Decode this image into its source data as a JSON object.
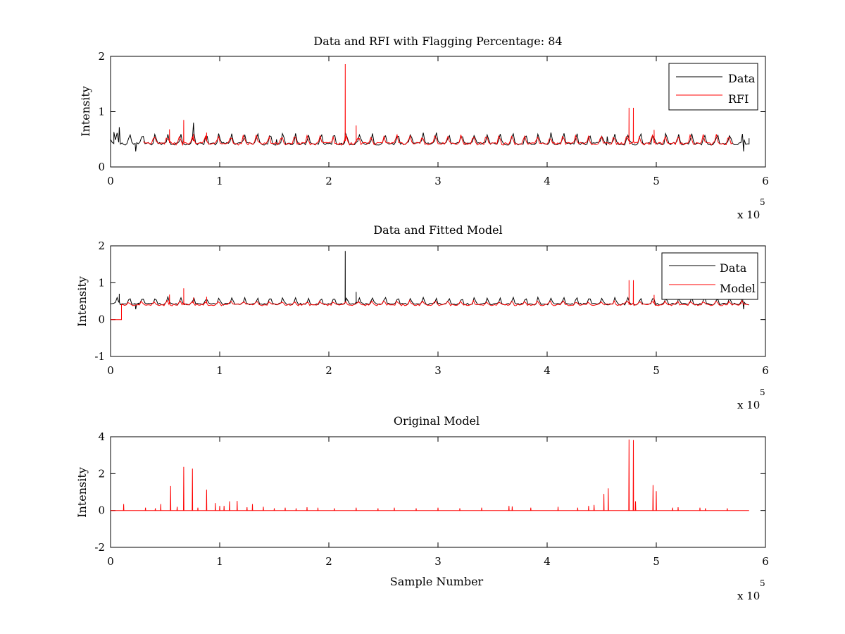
{
  "chart_data": [
    {
      "type": "line",
      "title": "Data and RFI with Flagging Percentage: 84",
      "xlabel": "",
      "ylabel": "Intensity",
      "xlim": [
        0,
        600000
      ],
      "ylim": [
        0,
        2
      ],
      "xticks": [
        "0",
        "1",
        "2",
        "3",
        "4",
        "5",
        "6"
      ],
      "yticks": [
        "0",
        "1",
        "2"
      ],
      "x_multiplier": "x 10",
      "x_multiplier_exp": "5",
      "legend": "top-right",
      "grid": false,
      "series": [
        {
          "name": "Data",
          "color": "#000000",
          "baseline": 0.42,
          "bump": 0.1,
          "note_points": [
            [
              0,
              0.5
            ],
            [
              3000,
              0.63
            ],
            [
              8000,
              0.72
            ],
            [
              23000,
              0.28
            ],
            [
              76000,
              0.8
            ],
            [
              152000,
              0.5
            ],
            [
              215000,
              0.62
            ],
            [
              455000,
              0.55
            ],
            [
              580000,
              0.28
            ],
            [
              585000,
              0.52
            ]
          ]
        },
        {
          "name": "RFI",
          "color": "#ff0000",
          "baseline": 0.42,
          "bump": 0.1,
          "segment": [
            30000,
            570000
          ],
          "spikes": [
            [
              54000,
              0.68
            ],
            [
              67000,
              0.85
            ],
            [
              76000,
              0.6
            ],
            [
              88000,
              0.62
            ],
            [
              215000,
              1.86
            ],
            [
              225000,
              0.75
            ],
            [
              475000,
              1.07
            ],
            [
              479000,
              1.07
            ],
            [
              498000,
              0.67
            ]
          ]
        }
      ]
    },
    {
      "type": "line",
      "title": "Data and Fitted Model",
      "xlabel": "",
      "ylabel": "Intensity",
      "xlim": [
        0,
        600000
      ],
      "ylim": [
        -1,
        2
      ],
      "xticks": [
        "0",
        "1",
        "2",
        "3",
        "4",
        "5",
        "6"
      ],
      "yticks": [
        "-1",
        "0",
        "1",
        "2"
      ],
      "x_multiplier": "x 10",
      "x_multiplier_exp": "5",
      "legend": "top-right",
      "grid": false,
      "series": [
        {
          "name": "Data",
          "color": "#000000",
          "baseline": 0.42,
          "bump": 0.1,
          "spikes": [
            [
              8000,
              0.7
            ],
            [
              215000,
              1.86
            ],
            [
              225000,
              0.75
            ]
          ],
          "dips": [
            [
              23000,
              0.28
            ],
            [
              580000,
              0.28
            ]
          ]
        },
        {
          "name": "Model",
          "color": "#ff0000",
          "baseline": 0.4,
          "bump": 0.05,
          "step": [
            [
              0,
              0.0
            ],
            [
              10000,
              0.0
            ],
            [
              10000,
              0.42
            ]
          ],
          "spikes": [
            [
              54000,
              0.68
            ],
            [
              67000,
              0.85
            ],
            [
              76000,
              0.6
            ],
            [
              88000,
              0.62
            ],
            [
              475000,
              1.07
            ],
            [
              479000,
              1.07
            ],
            [
              498000,
              0.67
            ]
          ]
        }
      ]
    },
    {
      "type": "line",
      "title": "Original Model",
      "xlabel": "Sample Number",
      "ylabel": "Intensity",
      "xlim": [
        0,
        600000
      ],
      "ylim": [
        -2,
        4
      ],
      "xticks": [
        "0",
        "1",
        "2",
        "3",
        "4",
        "5",
        "6"
      ],
      "yticks": [
        "-2",
        "0",
        "2",
        "4"
      ],
      "x_multiplier": "x 10",
      "x_multiplier_exp": "5",
      "grid": false,
      "series": [
        {
          "color": "#ff0000",
          "baseline": 0.0,
          "range": [
            0,
            585000
          ],
          "spikes": [
            [
              12000,
              0.35
            ],
            [
              32000,
              0.15
            ],
            [
              41000,
              0.12
            ],
            [
              46000,
              0.35
            ],
            [
              55000,
              1.33
            ],
            [
              61000,
              0.2
            ],
            [
              67000,
              2.37
            ],
            [
              75000,
              2.27
            ],
            [
              80000,
              0.15
            ],
            [
              88000,
              1.13
            ],
            [
              96000,
              0.4
            ],
            [
              100000,
              0.25
            ],
            [
              104000,
              0.25
            ],
            [
              109000,
              0.5
            ],
            [
              116000,
              0.52
            ],
            [
              125000,
              0.18
            ],
            [
              130000,
              0.35
            ],
            [
              140000,
              0.2
            ],
            [
              150000,
              0.12
            ],
            [
              160000,
              0.15
            ],
            [
              170000,
              0.12
            ],
            [
              180000,
              0.18
            ],
            [
              190000,
              0.15
            ],
            [
              205000,
              0.12
            ],
            [
              225000,
              0.15
            ],
            [
              245000,
              0.12
            ],
            [
              260000,
              0.15
            ],
            [
              280000,
              0.12
            ],
            [
              300000,
              0.15
            ],
            [
              320000,
              0.12
            ],
            [
              340000,
              0.15
            ],
            [
              365000,
              0.25
            ],
            [
              368000,
              0.22
            ],
            [
              385000,
              0.15
            ],
            [
              410000,
              0.2
            ],
            [
              428000,
              0.15
            ],
            [
              438000,
              0.25
            ],
            [
              443000,
              0.3
            ],
            [
              452000,
              0.9
            ],
            [
              456000,
              1.2
            ],
            [
              475000,
              3.85
            ],
            [
              479000,
              3.82
            ],
            [
              481000,
              0.5
            ],
            [
              497000,
              1.38
            ],
            [
              500000,
              1.05
            ],
            [
              515000,
              0.15
            ],
            [
              520000,
              0.18
            ],
            [
              540000,
              0.15
            ],
            [
              545000,
              0.12
            ],
            [
              565000,
              0.12
            ]
          ]
        }
      ]
    }
  ]
}
